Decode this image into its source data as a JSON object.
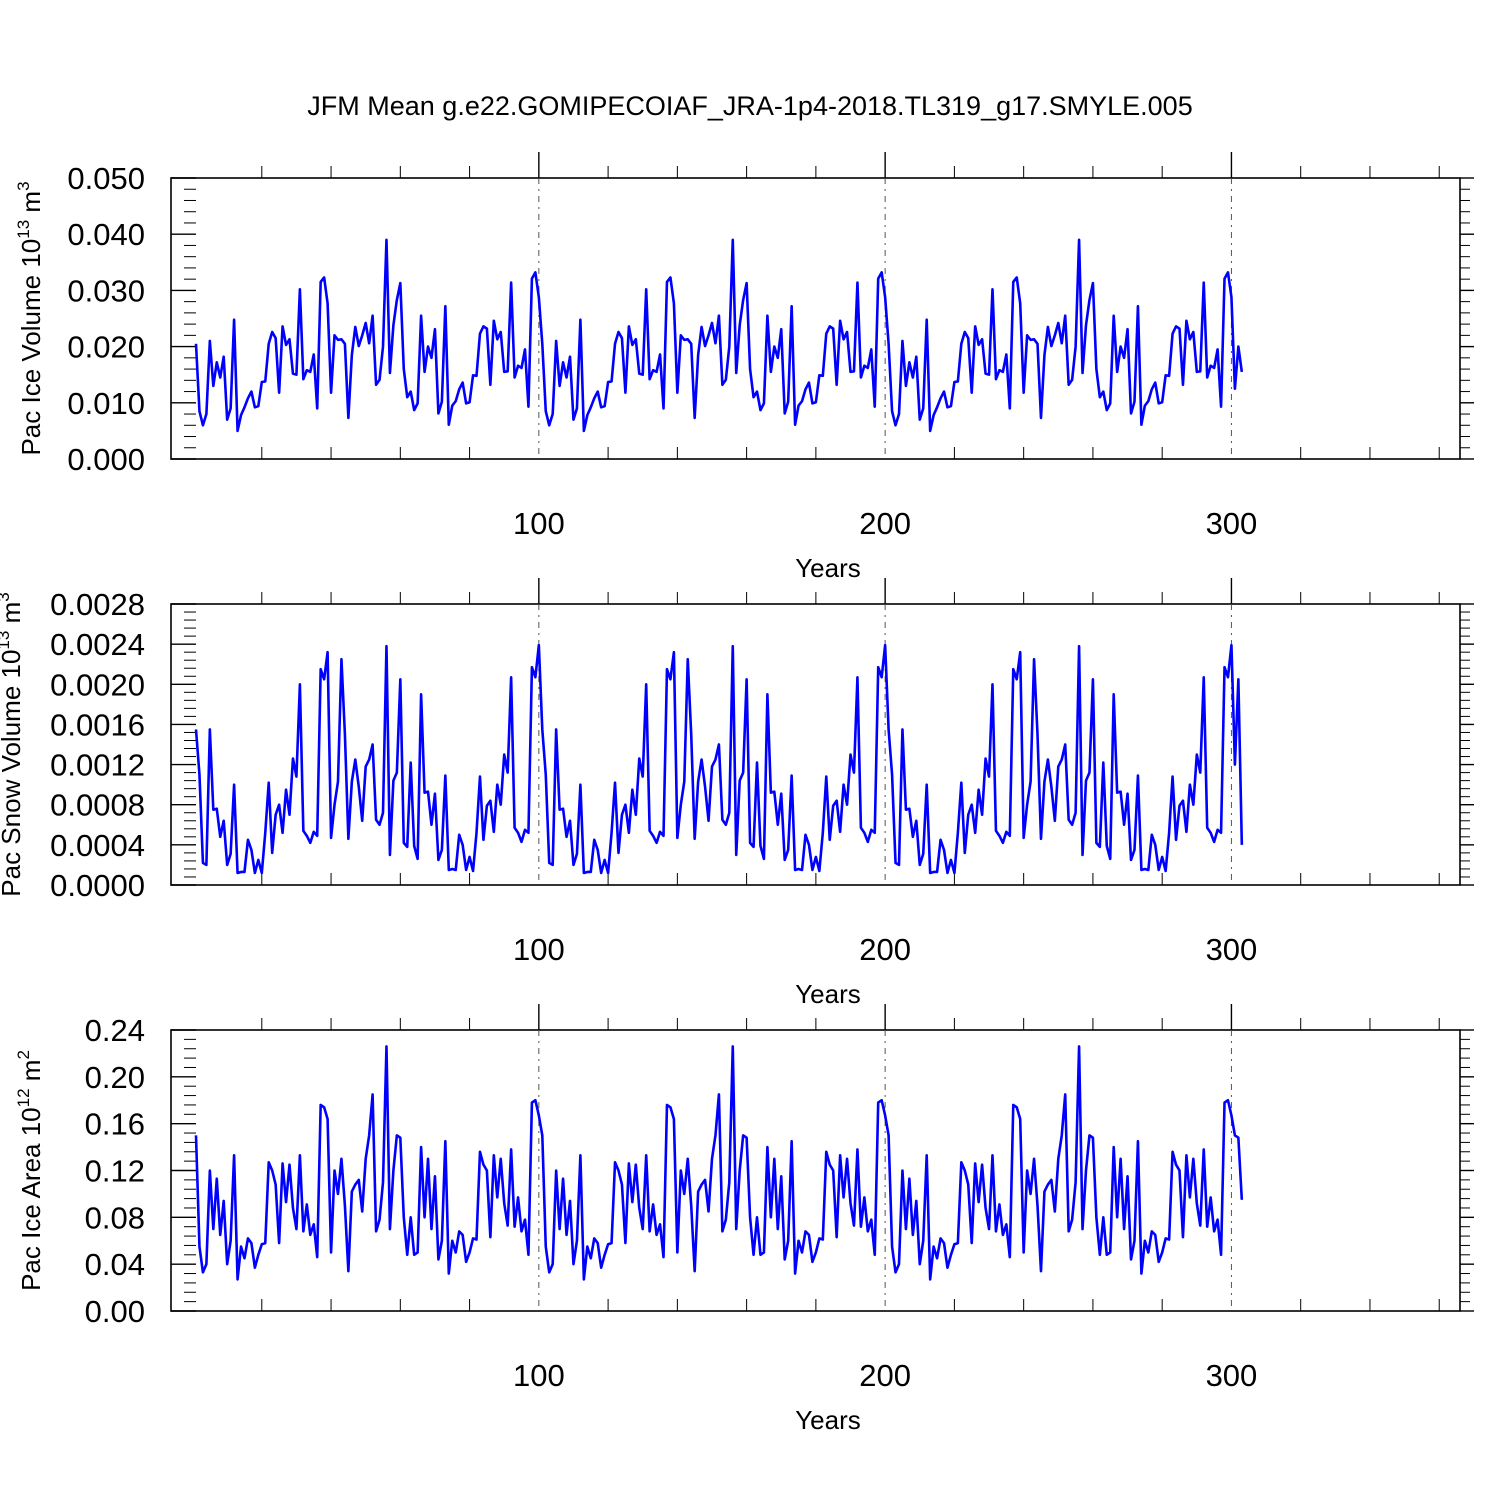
{
  "figure": {
    "title": "JFM Mean g.e22.GOMIPECOIAF_JRA-1p4-2018.TL319_g17.SMYLE.005",
    "line_color": "#0000ff"
  },
  "chart_data": [
    {
      "type": "line",
      "title": "",
      "xlabel": "Years",
      "ylabel_main": "Pac Ice Volume 10",
      "ylabel_sup1": "13",
      "ylabel_mid": " m",
      "ylabel_sup2": "3",
      "xlim": [
        1,
        366
      ],
      "ylim": [
        0,
        0.05
      ],
      "y_ticks": [
        0.0,
        0.01,
        0.02,
        0.03,
        0.04,
        0.05
      ],
      "y_tick_labels": [
        "0.000",
        "0.010",
        "0.020",
        "0.030",
        "0.040",
        "0.050"
      ],
      "x_ticks": [
        100,
        200,
        300
      ],
      "x_tick_labels": [
        "100",
        "200",
        "300"
      ],
      "grid_x": true,
      "cycle": [
        0.0205,
        0.0085,
        0.006,
        0.008,
        0.021,
        0.013,
        0.0172,
        0.0145,
        0.0182,
        0.007,
        0.009,
        0.0248,
        0.005,
        0.0078,
        0.0092,
        0.0108,
        0.012,
        0.0092,
        0.0094,
        0.0137,
        0.0138,
        0.0205,
        0.0226,
        0.0215,
        0.0118,
        0.0236,
        0.0203,
        0.0213,
        0.0152,
        0.015,
        0.0302,
        0.0142,
        0.0158,
        0.0155,
        0.0186,
        0.009,
        0.0315,
        0.0323,
        0.0277,
        0.0118,
        0.022,
        0.0212,
        0.0213,
        0.0205,
        0.0073,
        0.0185,
        0.0235,
        0.0201,
        0.022,
        0.0242,
        0.0206,
        0.0255,
        0.0132,
        0.0141,
        0.02,
        0.039,
        0.0153,
        0.0238,
        0.0283,
        0.0313,
        0.016,
        0.011,
        0.012,
        0.0087,
        0.0099,
        0.0255,
        0.0155,
        0.02,
        0.018,
        0.0231,
        0.0081,
        0.0102,
        0.0272,
        0.0061,
        0.0095,
        0.0103,
        0.0124,
        0.0136,
        0.0099,
        0.0101,
        0.0149,
        0.0148,
        0.0223,
        0.0236,
        0.0232,
        0.0132,
        0.0246,
        0.0213,
        0.0226,
        0.0155,
        0.0156,
        0.0314,
        0.0145,
        0.0166,
        0.0162,
        0.0195,
        0.0093,
        0.0321,
        0.0332,
        0.0288
      ],
      "series": [
        {
          "name": "",
          "repeat_cycle": 3,
          "tail": [
            0.0125,
            0.02,
            0.0155
          ]
        }
      ]
    },
    {
      "type": "line",
      "title": "",
      "xlabel": "Years",
      "ylabel_main": "Pac Snow Volume 10",
      "ylabel_sup1": "13",
      "ylabel_mid": " m",
      "ylabel_sup2": "3",
      "xlim": [
        1,
        366
      ],
      "ylim": [
        0,
        0.0028
      ],
      "y_ticks": [
        0.0,
        0.0004,
        0.0008,
        0.0012,
        0.0016,
        0.002,
        0.0024,
        0.0028
      ],
      "y_tick_labels": [
        "0.0000",
        "0.0004",
        "0.0008",
        "0.0012",
        "0.0016",
        "0.0020",
        "0.0024",
        "0.0028"
      ],
      "x_ticks": [
        100,
        200,
        300
      ],
      "x_tick_labels": [
        "100",
        "200",
        "300"
      ],
      "grid_x": true,
      "cycle": [
        0.00155,
        0.0011,
        0.00022,
        0.0002,
        0.00155,
        0.00075,
        0.00076,
        0.00048,
        0.00064,
        0.0002,
        0.00031,
        0.001,
        0.00012,
        0.00013,
        0.00013,
        0.00045,
        0.00035,
        0.00012,
        0.00025,
        0.00012,
        0.00052,
        0.00102,
        0.00032,
        0.0007,
        0.0008,
        0.00052,
        0.00095,
        0.0007,
        0.00126,
        0.00108,
        0.002,
        0.00054,
        0.00049,
        0.00042,
        0.00053,
        0.00049,
        0.00215,
        0.00205,
        0.00232,
        0.00047,
        0.0008,
        0.00103,
        0.00225,
        0.0015,
        0.00046,
        0.00103,
        0.00125,
        0.00098,
        0.00064,
        0.00118,
        0.00125,
        0.0014,
        0.00065,
        0.0006,
        0.00072,
        0.00238,
        0.0003,
        0.00104,
        0.00112,
        0.00205,
        0.00042,
        0.00038,
        0.00122,
        0.00039,
        0.00026,
        0.0019,
        0.00092,
        0.00093,
        0.0006,
        0.00091,
        0.00025,
        0.00035,
        0.00109,
        0.00015,
        0.00016,
        0.00015,
        0.0005,
        0.0004,
        0.00015,
        0.00028,
        0.00014,
        0.00052,
        0.00108,
        0.00045,
        0.00079,
        0.00084,
        0.00053,
        0.001,
        0.0008,
        0.0013,
        0.00112,
        0.00207,
        0.00057,
        0.00052,
        0.00043,
        0.00055,
        0.00052,
        0.00217,
        0.00207,
        0.00239
      ],
      "series": [
        {
          "name": "",
          "repeat_cycle": 3,
          "tail": [
            0.0012,
            0.00205,
            0.0004
          ]
        }
      ]
    },
    {
      "type": "line",
      "title": "",
      "xlabel": "Years",
      "ylabel_main": "Pac Ice Area 10",
      "ylabel_sup1": "12",
      "ylabel_mid": " m",
      "ylabel_sup2": "2",
      "xlim": [
        1,
        366
      ],
      "ylim": [
        0,
        0.24
      ],
      "y_ticks": [
        0.0,
        0.04,
        0.08,
        0.12,
        0.16,
        0.2,
        0.24
      ],
      "y_tick_labels": [
        "0.00",
        "0.04",
        "0.08",
        "0.12",
        "0.16",
        "0.20",
        "0.24"
      ],
      "x_ticks": [
        100,
        200,
        300
      ],
      "x_tick_labels": [
        "100",
        "200",
        "300"
      ],
      "grid_x": true,
      "cycle": [
        0.15,
        0.055,
        0.033,
        0.04,
        0.12,
        0.07,
        0.113,
        0.065,
        0.094,
        0.04,
        0.06,
        0.133,
        0.027,
        0.055,
        0.045,
        0.062,
        0.058,
        0.037,
        0.048,
        0.057,
        0.058,
        0.127,
        0.12,
        0.108,
        0.058,
        0.126,
        0.093,
        0.125,
        0.088,
        0.07,
        0.133,
        0.068,
        0.091,
        0.065,
        0.074,
        0.046,
        0.176,
        0.174,
        0.164,
        0.05,
        0.12,
        0.1,
        0.13,
        0.09,
        0.034,
        0.102,
        0.108,
        0.112,
        0.085,
        0.13,
        0.15,
        0.185,
        0.068,
        0.078,
        0.11,
        0.226,
        0.07,
        0.12,
        0.15,
        0.148,
        0.08,
        0.048,
        0.08,
        0.048,
        0.05,
        0.14,
        0.08,
        0.13,
        0.07,
        0.115,
        0.044,
        0.06,
        0.145,
        0.032,
        0.06,
        0.05,
        0.068,
        0.065,
        0.042,
        0.05,
        0.062,
        0.061,
        0.136,
        0.125,
        0.12,
        0.063,
        0.133,
        0.097,
        0.13,
        0.092,
        0.073,
        0.138,
        0.072,
        0.097,
        0.068,
        0.078,
        0.048,
        0.178,
        0.18,
        0.167
      ],
      "series": [
        {
          "name": "",
          "repeat_cycle": 3,
          "tail": [
            0.15,
            0.148,
            0.095
          ]
        }
      ]
    }
  ]
}
